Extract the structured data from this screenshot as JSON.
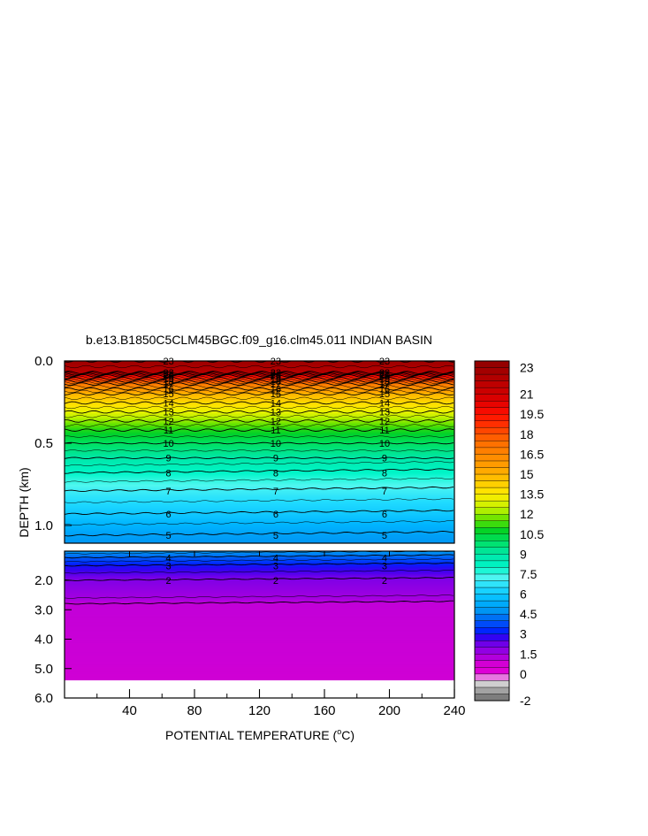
{
  "chart_data": {
    "type": "heatmap",
    "title": "b.e13.B1850C5CLM45BGC.f09_g16.clm45.011 INDIAN BASIN",
    "xlabel_prefix": "POTENTIAL TEMPERATURE (",
    "xlabel_unit_sup": "o",
    "xlabel_suffix": "C)",
    "ylabel": "DEPTH (km)",
    "xlim": [
      0,
      240
    ],
    "x_ticks": [
      40,
      80,
      120,
      160,
      200,
      240
    ],
    "upper_panel": {
      "ylim": [
        0.0,
        1.1
      ],
      "y_ticks": [
        "0.0",
        "0.5",
        "1.0"
      ],
      "y_tick_values": [
        0.0,
        0.5,
        1.0
      ]
    },
    "lower_panel": {
      "ylim": [
        1.1,
        6.0
      ],
      "y_ticks": [
        "2.0",
        "3.0",
        "4.0",
        "5.0",
        "6.0"
      ],
      "y_tick_values": [
        2.0,
        3.0,
        4.0,
        5.0,
        6.0
      ]
    },
    "colorbar": {
      "min": -2,
      "max": 23.5,
      "step": 0.5,
      "tick_labels": [
        "23",
        "21",
        "19.5",
        "18",
        "16.5",
        "15",
        "13.5",
        "12",
        "10.5",
        "9",
        "7.5",
        "6",
        "4.5",
        "3",
        "1.5",
        "0",
        "-2"
      ],
      "tick_values": [
        23,
        21,
        19.5,
        18,
        16.5,
        15,
        13.5,
        12,
        10.5,
        9,
        7.5,
        6,
        4.5,
        3,
        1.5,
        0,
        -2
      ]
    },
    "isotherm_profile_km": [
      {
        "t": 23,
        "d": 0.0
      },
      {
        "t": 22,
        "d": 0.07
      },
      {
        "t": 20,
        "d": 0.09
      },
      {
        "t": 17,
        "d": 0.14
      },
      {
        "t": 15,
        "d": 0.2
      },
      {
        "t": 13,
        "d": 0.31
      },
      {
        "t": 11,
        "d": 0.42
      },
      {
        "t": 10,
        "d": 0.5
      },
      {
        "t": 9,
        "d": 0.59
      },
      {
        "t": 8,
        "d": 0.68
      },
      {
        "t": 7,
        "d": 0.79
      },
      {
        "t": 6,
        "d": 0.93
      },
      {
        "t": 5,
        "d": 1.06
      },
      {
        "t": 4.5,
        "d": 1.18
      },
      {
        "t": 4,
        "d": 1.3
      },
      {
        "t": 3,
        "d": 1.55
      },
      {
        "t": 2,
        "d": 2.0
      },
      {
        "t": 1.5,
        "d": 2.6
      },
      {
        "t": 1.0,
        "d": 2.8
      },
      {
        "t": 0.8,
        "d": 5.4
      }
    ],
    "contour_labels": {
      "x_positions": [
        64,
        130,
        197
      ],
      "upper_levels": [
        "23",
        "22",
        "21",
        "20",
        "19",
        "18",
        "17",
        "16",
        "15",
        "14",
        "13",
        "12",
        "11",
        "10",
        "9",
        "8",
        "7",
        "6",
        "5"
      ],
      "lower_levels": [
        "4",
        "3",
        "2"
      ]
    },
    "seafloor_depth_km": 5.4,
    "grid": false
  }
}
